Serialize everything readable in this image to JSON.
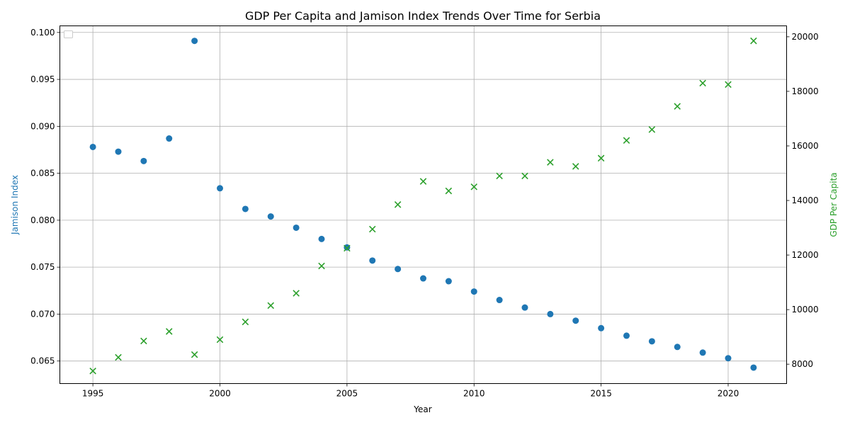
{
  "chart_data": {
    "type": "scatter",
    "title": "GDP Per Capita and Jamison Index Trends Over Time for Serbia",
    "xlabel": "Year",
    "ylabel_left": "Jamison Index",
    "ylabel_right": "GDP Per Capita",
    "xlim": [
      1993.7,
      2022.3
    ],
    "ylim_left": [
      0.0626,
      0.1007
    ],
    "ylim_right": [
      7290,
      20400
    ],
    "x_ticks": [
      1995,
      2000,
      2005,
      2010,
      2015,
      2020
    ],
    "y_ticks_left": [
      0.065,
      0.07,
      0.075,
      0.08,
      0.085,
      0.09,
      0.095,
      0.1
    ],
    "y_ticks_left_labels": [
      "0.065",
      "0.070",
      "0.075",
      "0.080",
      "0.085",
      "0.090",
      "0.095",
      "0.100"
    ],
    "y_ticks_right": [
      8000,
      10000,
      12000,
      14000,
      16000,
      18000,
      20000
    ],
    "grid": true,
    "legend_placement": "upper-left",
    "x": [
      1995,
      1996,
      1997,
      1998,
      1999,
      2000,
      2001,
      2002,
      2003,
      2004,
      2005,
      2006,
      2007,
      2008,
      2009,
      2010,
      2011,
      2012,
      2013,
      2014,
      2015,
      2016,
      2017,
      2018,
      2019,
      2020,
      2021
    ],
    "series": [
      {
        "axis": "left",
        "marker": "circle",
        "color": "#1f77b4",
        "values": [
          0.0878,
          0.0873,
          0.0863,
          0.0887,
          0.0991,
          0.0834,
          0.0812,
          0.0804,
          0.0792,
          0.078,
          0.0771,
          0.0757,
          0.0748,
          0.0738,
          0.0735,
          0.0724,
          0.0715,
          0.0707,
          0.07,
          0.0693,
          0.0685,
          0.0677,
          0.0671,
          0.0665,
          0.0659,
          0.0653,
          0.0643
        ]
      },
      {
        "axis": "right",
        "marker": "x",
        "color": "#2ca02c",
        "values": [
          7750,
          8250,
          8850,
          9200,
          8350,
          8900,
          9550,
          10150,
          10600,
          11600,
          12250,
          12950,
          13850,
          14700,
          14350,
          14500,
          14900,
          14900,
          15400,
          15250,
          15550,
          16200,
          16600,
          17450,
          18300,
          18250,
          19850
        ]
      }
    ]
  }
}
